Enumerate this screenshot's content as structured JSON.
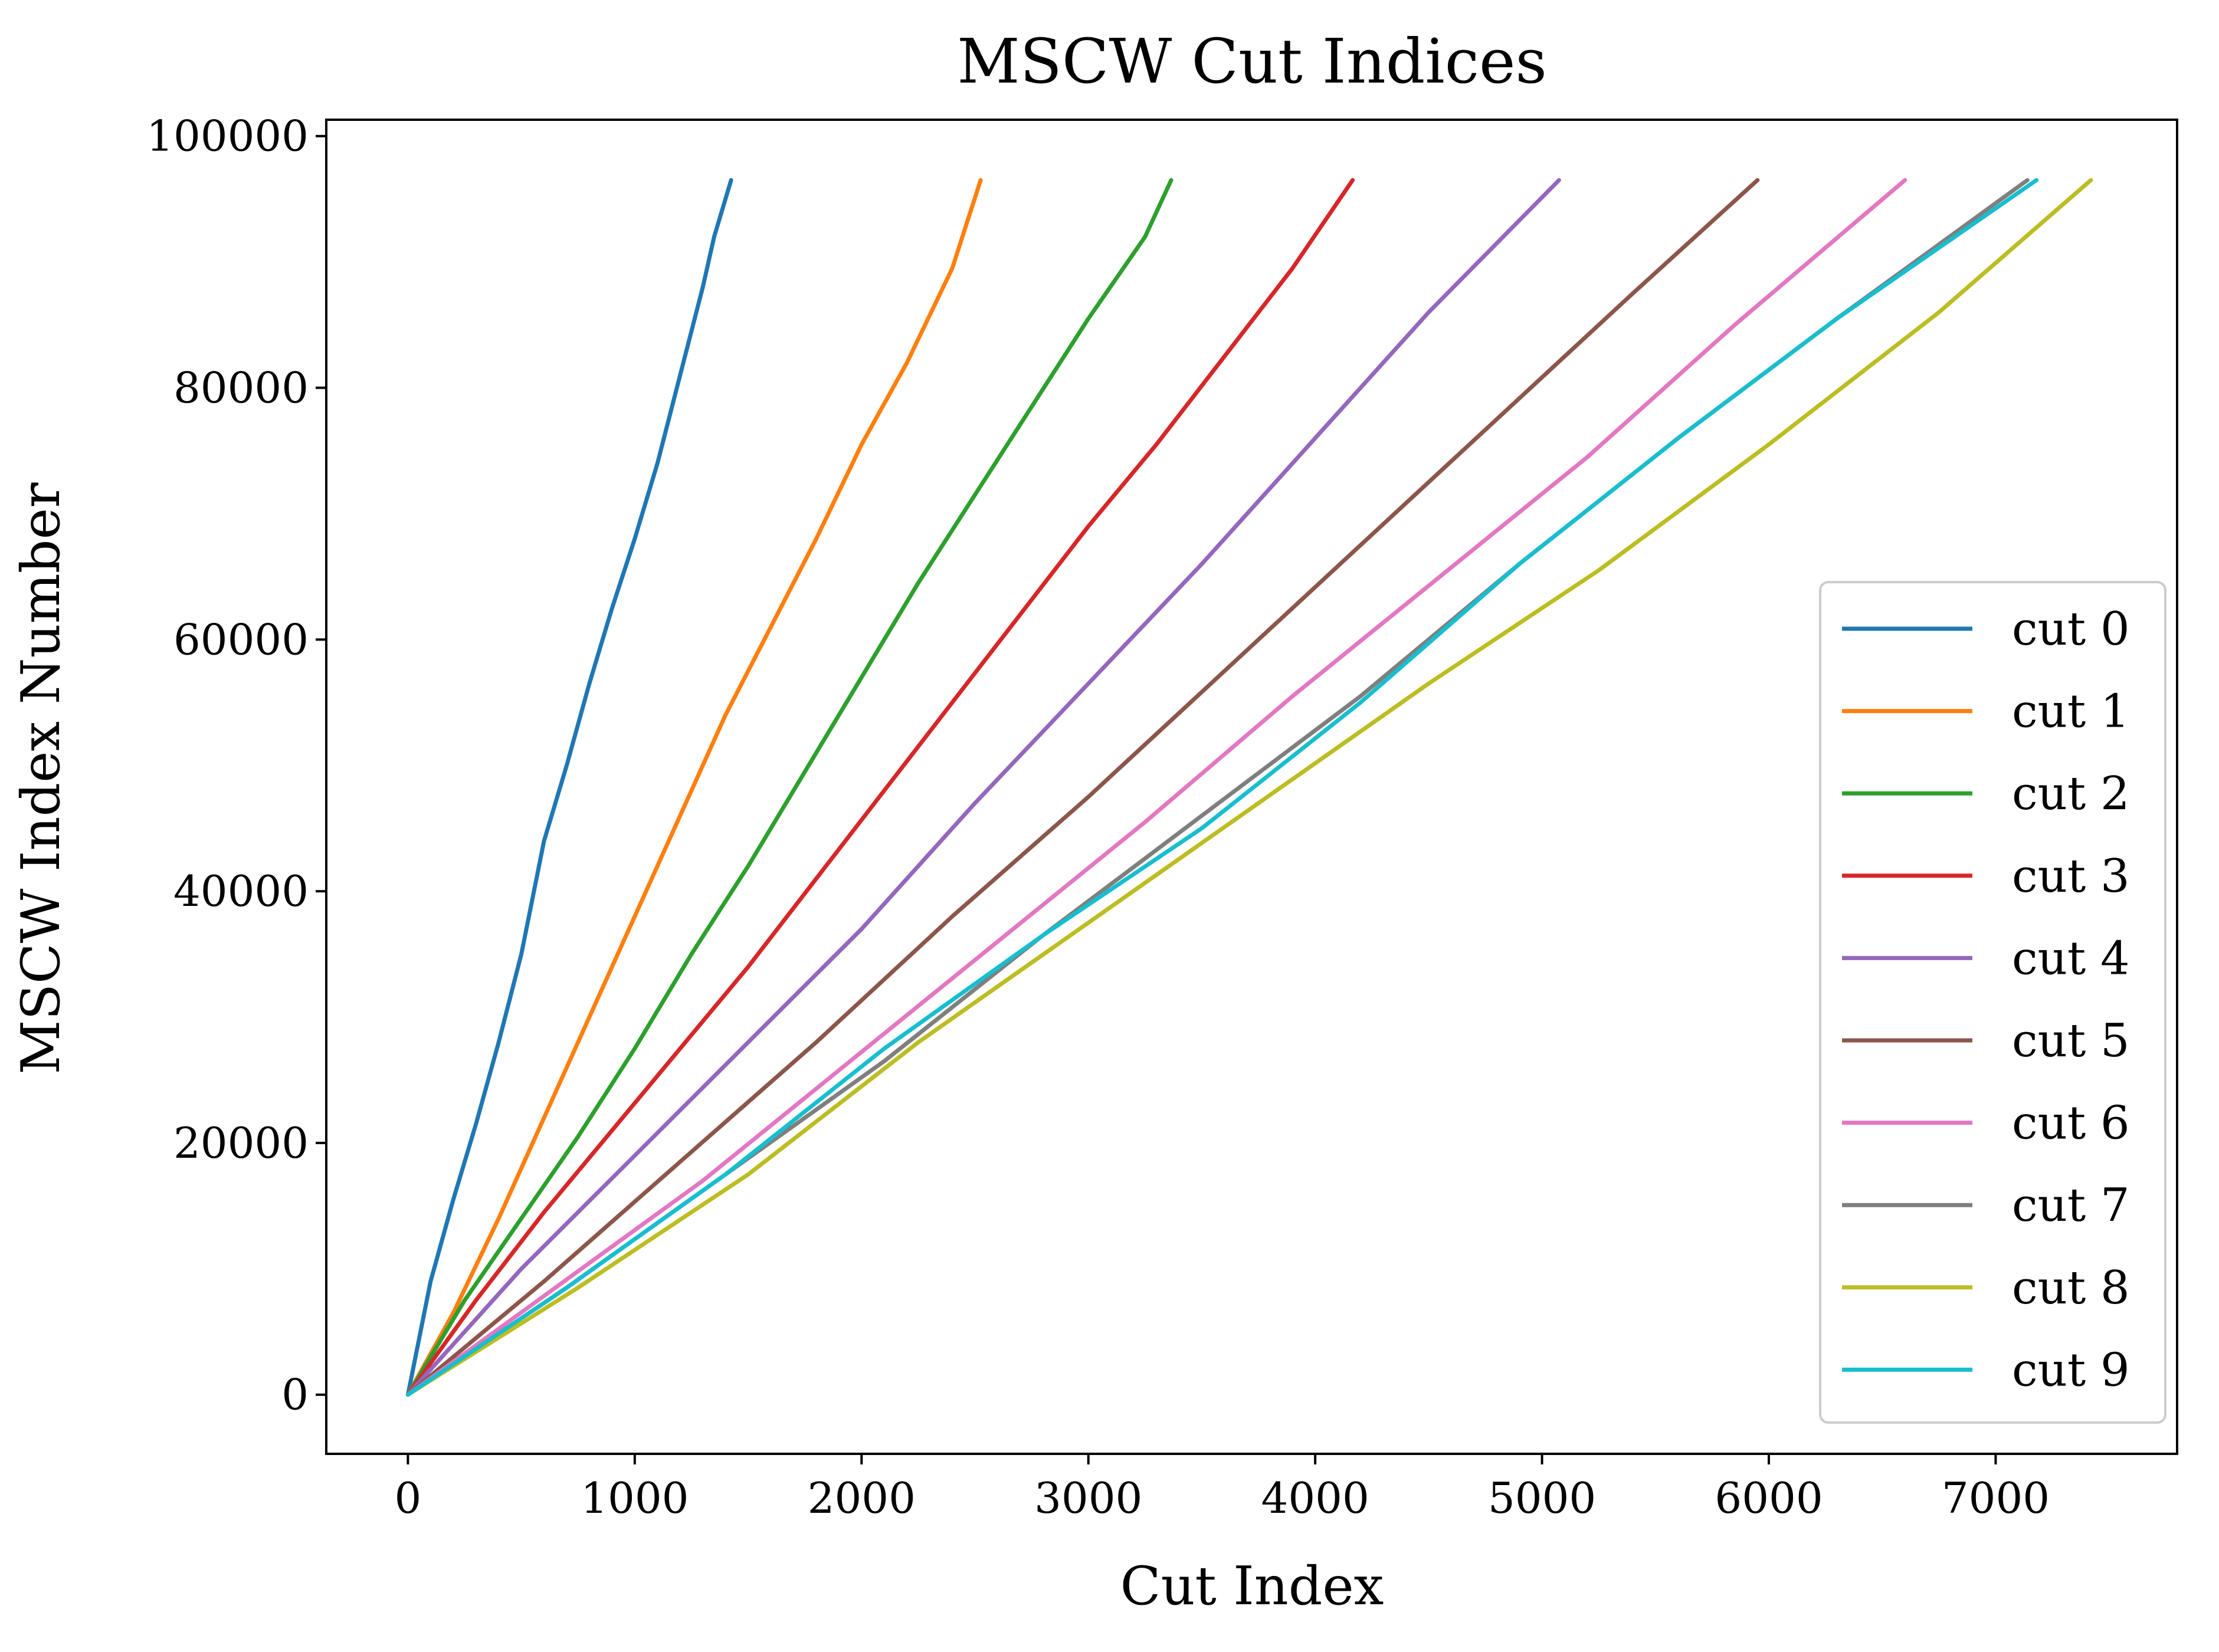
{
  "chart_data": {
    "type": "line",
    "title": "MSCW Cut Indices",
    "xlabel": "Cut Index",
    "ylabel": "MSCW Index Number",
    "xlim": [
      -360,
      7800
    ],
    "ylim": [
      -4700,
      101300
    ],
    "xticks": [
      0,
      1000,
      2000,
      3000,
      4000,
      5000,
      6000,
      7000
    ],
    "yticks": [
      0,
      20000,
      40000,
      60000,
      80000,
      100000
    ],
    "xtick_labels": [
      "0",
      "1000",
      "2000",
      "3000",
      "4000",
      "5000",
      "6000",
      "7000"
    ],
    "ytick_labels": [
      "0",
      "20000",
      "40000",
      "60000",
      "80000",
      "100000"
    ],
    "grid": false,
    "legend_position": "lower-right",
    "series": [
      {
        "name": "cut 0",
        "color": "#1f77b4",
        "x": [
          0,
          100,
          200,
          300,
          400,
          500,
          600,
          700,
          800,
          900,
          1000,
          1100,
          1200,
          1300,
          1350,
          1425
        ],
        "y": [
          0,
          9000,
          15500,
          21500,
          28000,
          35000,
          44000,
          50000,
          56500,
          62500,
          68000,
          74000,
          81000,
          88000,
          92000,
          96500
        ]
      },
      {
        "name": "cut 1",
        "color": "#ff7f0e",
        "x": [
          0,
          200,
          400,
          600,
          800,
          1000,
          1200,
          1400,
          1600,
          1800,
          2000,
          2200,
          2400,
          2525
        ],
        "y": [
          0,
          6500,
          14000,
          22000,
          30000,
          38000,
          46000,
          54000,
          61000,
          68000,
          75500,
          82000,
          89500,
          96500
        ]
      },
      {
        "name": "cut 2",
        "color": "#2ca02c",
        "x": [
          0,
          250,
          500,
          750,
          1000,
          1250,
          1500,
          1750,
          2000,
          2250,
          2500,
          2750,
          3000,
          3250,
          3365
        ],
        "y": [
          0,
          7500,
          14000,
          20500,
          27500,
          35000,
          42000,
          49500,
          57000,
          64500,
          71500,
          78500,
          85500,
          92000,
          96500
        ]
      },
      {
        "name": "cut 3",
        "color": "#d62728",
        "x": [
          0,
          300,
          600,
          900,
          1200,
          1500,
          1800,
          2100,
          2400,
          2700,
          3000,
          3300,
          3600,
          3900,
          4165
        ],
        "y": [
          0,
          7500,
          14500,
          21000,
          27500,
          34000,
          41000,
          48000,
          55000,
          62000,
          69000,
          75500,
          82500,
          89500,
          96500
        ]
      },
      {
        "name": "cut 4",
        "color": "#9467bd",
        "x": [
          0,
          500,
          1000,
          1500,
          2000,
          2500,
          3000,
          3500,
          4000,
          4500,
          5075
        ],
        "y": [
          0,
          10000,
          19000,
          28000,
          37000,
          47000,
          56500,
          66000,
          76000,
          86000,
          96500
        ]
      },
      {
        "name": "cut 5",
        "color": "#8c564b",
        "x": [
          0,
          600,
          1200,
          1800,
          2400,
          3000,
          3600,
          4200,
          4800,
          5400,
          5950
        ],
        "y": [
          0,
          9000,
          18500,
          28000,
          38000,
          47500,
          57500,
          67500,
          77500,
          87500,
          96500
        ]
      },
      {
        "name": "cut 6",
        "color": "#e377c2",
        "x": [
          0,
          650,
          1300,
          1950,
          2600,
          3250,
          3900,
          4550,
          5200,
          5850,
          6600
        ],
        "y": [
          0,
          8500,
          17000,
          26500,
          36000,
          45500,
          55500,
          65000,
          74500,
          85000,
          96500
        ]
      },
      {
        "name": "cut 7",
        "color": "#7f7f7f",
        "x": [
          0,
          700,
          1400,
          2100,
          2800,
          3500,
          4200,
          4900,
          5600,
          6300,
          7140
        ],
        "y": [
          0,
          8500,
          17500,
          26500,
          36500,
          46000,
          55500,
          66000,
          76000,
          85500,
          96500
        ]
      },
      {
        "name": "cut 8",
        "color": "#bcbd22",
        "x": [
          0,
          750,
          1500,
          2250,
          3000,
          3750,
          4500,
          5250,
          6000,
          6750,
          7420
        ],
        "y": [
          0,
          8500,
          17500,
          28000,
          37500,
          47000,
          56500,
          65500,
          75500,
          86000,
          96500
        ]
      },
      {
        "name": "cut 9",
        "color": "#17becf",
        "x": [
          0,
          700,
          1400,
          2100,
          2800,
          3500,
          4200,
          4900,
          5600,
          6300,
          7180
        ],
        "y": [
          0,
          8500,
          17500,
          27500,
          36500,
          45000,
          55000,
          66000,
          76000,
          85500,
          96500
        ]
      }
    ]
  }
}
